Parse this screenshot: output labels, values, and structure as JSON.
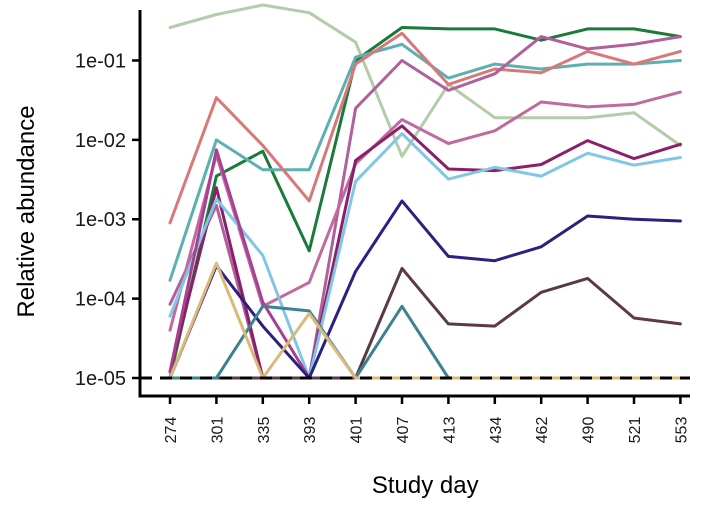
{
  "chart_data": {
    "type": "line",
    "xlabel": "Study day",
    "ylabel": "Relative abundance",
    "y_scale": "log",
    "ylim": [
      1e-05,
      0.5
    ],
    "categories": [
      "274",
      "301",
      "335",
      "393",
      "401",
      "407",
      "413",
      "434",
      "462",
      "490",
      "521",
      "553"
    ],
    "y_tick_values": [
      1e-05,
      0.0001,
      0.001,
      0.01,
      0.1
    ],
    "y_tick_labels": [
      "1e-05",
      "1e-04",
      "1e-03",
      "1e-02",
      "1e-01"
    ],
    "detection_limit": 1e-05,
    "grid": false,
    "legend": "none",
    "series": [
      {
        "color": "#b3ccaa",
        "values": [
          0.26,
          0.38,
          0.5,
          0.4,
          0.17,
          0.0062,
          0.05,
          0.019,
          0.019,
          0.019,
          0.022,
          0.0085
        ]
      },
      {
        "color": "#1a7a3a",
        "values": [
          1e-05,
          0.0035,
          0.0072,
          0.0004,
          0.1,
          0.26,
          0.25,
          0.25,
          0.18,
          0.25,
          0.25,
          0.2
        ]
      },
      {
        "color": "#5cb0b0",
        "values": [
          0.00017,
          0.01,
          0.0042,
          0.0042,
          0.11,
          0.16,
          0.06,
          0.09,
          0.078,
          0.09,
          0.09,
          0.1
        ]
      },
      {
        "color": "#d87878",
        "values": [
          0.0009,
          0.034,
          0.0085,
          0.0017,
          0.09,
          0.22,
          0.05,
          0.078,
          0.07,
          0.13,
          0.09,
          0.13
        ]
      },
      {
        "color": "#b0609a",
        "values": [
          8.5e-05,
          0.0015,
          1e-05,
          1e-05,
          0.025,
          0.1,
          0.042,
          0.068,
          0.2,
          0.14,
          0.16,
          0.2
        ]
      },
      {
        "color": "#c06aa0",
        "values": [
          4e-05,
          0.0065,
          8e-05,
          0.00016,
          0.005,
          0.018,
          0.009,
          0.013,
          0.03,
          0.026,
          0.028,
          0.04
        ]
      },
      {
        "color": "#8a2068",
        "values": [
          1.2e-05,
          0.0025,
          1e-05,
          1e-05,
          0.0055,
          0.015,
          0.0043,
          0.0041,
          0.0049,
          0.0098,
          0.0058,
          0.0088
        ]
      },
      {
        "color": "#82c6e6",
        "values": [
          6e-05,
          0.0018,
          0.00035,
          1e-05,
          0.003,
          0.012,
          0.0032,
          0.0045,
          0.0035,
          0.0068,
          0.0048,
          0.006
        ]
      },
      {
        "color": "#a84090",
        "values": [
          1.2e-05,
          0.0075,
          9e-05,
          1e-05,
          1e-05,
          1e-05,
          1e-05,
          1e-05,
          1e-05,
          1e-05,
          1e-05,
          1e-05
        ]
      },
      {
        "color": "#2c2080",
        "values": [
          1e-05,
          0.00026,
          4.5e-05,
          1e-05,
          0.00022,
          0.0017,
          0.00034,
          0.0003,
          0.00045,
          0.0011,
          0.001,
          0.00095
        ]
      },
      {
        "color": "#5a3a4a",
        "values": [
          1e-05,
          1e-05,
          1e-05,
          1e-05,
          1e-05,
          0.00024,
          4.8e-05,
          4.5e-05,
          0.00012,
          0.00018,
          5.7e-05,
          4.8e-05
        ]
      },
      {
        "color": "#3d8292",
        "values": [
          1e-05,
          1e-05,
          8e-05,
          7e-05,
          1e-05,
          8e-05,
          1e-05,
          1e-05,
          1e-05,
          1e-05,
          1e-05,
          1e-05
        ]
      },
      {
        "color": "#dcb978",
        "values": [
          1e-05,
          0.00028,
          1e-05,
          6.5e-05,
          1e-05,
          1e-05,
          1e-05,
          1e-05,
          1e-05,
          1e-05,
          1e-05,
          1e-05
        ]
      }
    ]
  }
}
